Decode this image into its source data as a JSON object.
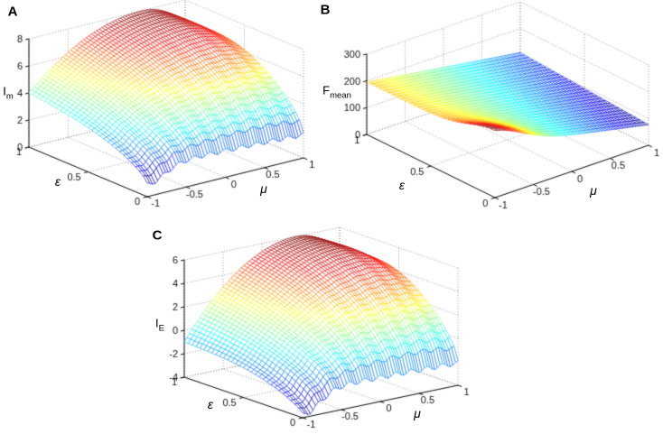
{
  "figure": {
    "kind": "three 3D jet-colormap mesh surface plots on white background",
    "colormap": "jet",
    "grid_style": "dotted",
    "accent_colors": {
      "surface_low": "#00008f",
      "surface_high": "#8f0000",
      "grid": "#8f8f8f",
      "axis": "#111111"
    }
  },
  "panels": [
    {
      "id": "A",
      "letter": "A",
      "xlabel": "μ",
      "ylabel": "ε",
      "zlabel_base": "I",
      "zlabel_sub": "m"
    },
    {
      "id": "B",
      "letter": "B",
      "xlabel": "μ",
      "ylabel": "ε",
      "zlabel_base": "F",
      "zlabel_sub": "mean"
    },
    {
      "id": "C",
      "letter": "C",
      "xlabel": "μ",
      "ylabel": "ε",
      "zlabel_base": "I",
      "zlabel_sub": "E"
    }
  ],
  "chart_data": [
    {
      "panel": "A",
      "type": "surface",
      "colormap": "jet",
      "title": "",
      "xlabel": "μ",
      "ylabel": "ε",
      "zlabel": "I_m",
      "xlim": [
        -1,
        1
      ],
      "ylim": [
        0,
        1
      ],
      "zlim": [
        0,
        8
      ],
      "xticks": [
        -1,
        -0.5,
        0,
        0.5,
        1
      ],
      "yticks": [
        0,
        0.5,
        1
      ],
      "zticks": [
        0,
        2,
        4,
        6,
        8
      ],
      "x_samples": [
        -1,
        -0.5,
        0,
        0.5,
        1
      ],
      "y_samples": [
        0,
        0.5,
        1
      ],
      "z_grid": [
        [
          0.9,
          2.0,
          2.0,
          1.9,
          1.7
        ],
        [
          3.2,
          5.1,
          6.3,
          6.9,
          6.1
        ],
        [
          4.0,
          6.3,
          7.6,
          8.0,
          6.3
        ]
      ],
      "peak": {
        "mu": 0.45,
        "eps": 1,
        "z": 8
      },
      "notes": "Dome-shaped surface, max ≈8 (dark red) near μ≈0.4–0.6 at high ε; ≈4 at μ=-1, ε=1; low rippled front edge ≈2 at ε=0 with dip ≈0.9 near μ=-1",
      "model": {
        "front_base": 2.05,
        "front_curve": -0.35,
        "dive_amp": 1.2,
        "dive_width": 0.3,
        "dive_pow": 3,
        "peak_mu": 0.45,
        "peak_z": 8,
        "left_drop": 4,
        "right_drop": 1.7,
        "v_pow": 0.55,
        "bump_amp": 1.3,
        "ripple_amp": 0.15,
        "ripple_waves": 10
      }
    },
    {
      "panel": "B",
      "type": "surface",
      "colormap": "jet",
      "title": "",
      "xlabel": "μ",
      "ylabel": "ε",
      "zlabel": "F_mean",
      "xlim": [
        -1,
        1
      ],
      "ylim": [
        0,
        1
      ],
      "zlim": [
        0,
        300
      ],
      "xticks": [
        -1,
        -0.5,
        0,
        0.5,
        1
      ],
      "yticks": [
        0,
        0.5,
        1
      ],
      "zticks": [
        0,
        100,
        200,
        300
      ],
      "x_samples": [
        -1,
        -0.5,
        0,
        0.5,
        1
      ],
      "y_samples": [
        0,
        0.5,
        1
      ],
      "z_grid": [
        [
          240,
          174,
          131,
          104,
          77
        ],
        [
          196,
          167,
          142,
          118,
          93
        ],
        [
          195,
          174,
          152,
          131,
          110
        ]
      ],
      "peak": {
        "mu": -1,
        "eps": 0,
        "z": 240
      },
      "notes": "Nearly planar wedge: ≈200 (red) at μ=-1 decreasing to ≈80-110 (blue) at μ=1; steep dark-red cliff bump near μ=-1, ε≈0",
      "model": {
        "left_base": 195,
        "right_base": 77,
        "right_slope": 33,
        "cliff_amp": 55,
        "cliff_mu_width": 0.5,
        "cliff_eps_width": 0.28
      }
    },
    {
      "panel": "C",
      "type": "surface",
      "colormap": "jet",
      "title": "",
      "xlabel": "μ",
      "ylabel": "ε",
      "zlabel": "I_E",
      "xlim": [
        -1,
        1
      ],
      "ylim": [
        0,
        1
      ],
      "zlim": [
        -4,
        6
      ],
      "xticks": [
        -1,
        -0.5,
        0,
        0.5,
        1
      ],
      "yticks": [
        0,
        0.5,
        1
      ],
      "zticks": [
        -4,
        -2,
        0,
        2,
        4,
        6
      ],
      "x_samples": [
        -1,
        -0.5,
        0,
        0.5,
        1
      ],
      "y_samples": [
        0,
        0.5,
        1
      ],
      "z_grid": [
        [
          -3.9,
          -2.0,
          -2.0,
          -2.0,
          -2.1
        ],
        [
          -1.6,
          1.7,
          3.7,
          4.7,
          3.9
        ],
        [
          -1.0,
          3.0,
          5.3,
          6.0,
          3.8
        ]
      ],
      "peak": {
        "mu": 0.45,
        "eps": 1,
        "z": 6
      },
      "notes": "Dome-shaped surface, max ≈6 (dark red) near μ≈0.4–0.6 at high ε; ≈-1 at μ=-1, ε=1; rippled front edge ≈-2 with deep dive to ≈-3.9 near μ=-1, ε=0",
      "model": {
        "front_base": -1.9,
        "front_curve": -0.2,
        "dive_amp": 1.9,
        "dive_width": 0.3,
        "dive_pow": 3,
        "peak_mu": 0.45,
        "peak_z": 6,
        "left_drop": 7,
        "right_drop": 2.2,
        "v_pow": 0.55,
        "bump_amp": 2.0,
        "ripple_amp": 0.2,
        "ripple_waves": 10
      }
    }
  ]
}
